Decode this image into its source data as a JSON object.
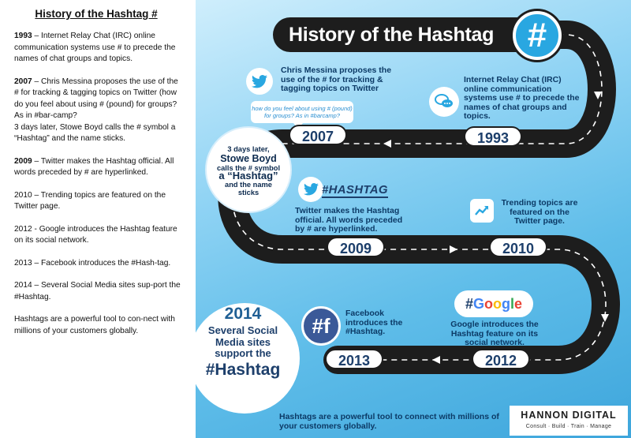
{
  "left_panel": {
    "title": "History of the Hashtag #",
    "paragraphs": [
      {
        "year": "1993",
        "text": " – Internet Relay Chat (IRC) online communication systems use # to precede the names of chat groups and topics."
      },
      {
        "year": "2007",
        "text": " – Chris Messina proposes the use of the # for tracking & tagging topics on Twitter (how do you feel about using # (pound) for groups? As in #bar-camp?\n3 days later, Stowe Boyd calls the # symbol a “Hashtag” and the name sticks."
      },
      {
        "year": "2009",
        "text": " – Twitter makes the Hashtag official. All words preceded by # are hyperlinked."
      },
      {
        "year": "",
        "text": "2010 – Trending topics are featured on the Twitter page."
      },
      {
        "year": "",
        "text": "2012 - Google introduces the Hashtag feature on its social network."
      },
      {
        "year": "",
        "text": "2013 – Facebook introduces the #Hash-tag."
      },
      {
        "year": "",
        "text": "2014 – Several Social Media sites sup-port the #Hashtag."
      },
      {
        "year": "",
        "text": "Hashtags are a powerful tool to con-nect with millions of your customers globally."
      }
    ]
  },
  "infographic": {
    "title": "History of the Hashtag",
    "hash_symbol": "#",
    "events": {
      "e2007": {
        "text": "Chris Messina proposes the use of the # for tracking & tagging topics on Twitter",
        "bubble": "how do you feel about using # (pound) for groups? As in #barcamp?",
        "year": "2007"
      },
      "e1993": {
        "text": "Internet Relay Chat (IRC) online communication systems use # to precede the names of chat groups and topics.",
        "year": "1993"
      },
      "stowe": {
        "line1": "3 days later,",
        "line2": "Stowe Boyd",
        "line3": "calls the # symbol",
        "line4": "a “Hashtag”",
        "line5": "and the name",
        "line6": "sticks"
      },
      "e2009": {
        "text": "Twitter makes the Hashtag official. All words preceded by # are hyperlinked.",
        "tag": "#HASHTAG",
        "year": "2009"
      },
      "e2010": {
        "text": "Trending topics are featured on the Twitter page.",
        "year": "2010"
      },
      "e2012": {
        "text": "Google introduces the Hashtag feature on its social network.",
        "year": "2012",
        "logo": "#Google"
      },
      "e2013": {
        "text": "Facebook introduces the #Hashtag.",
        "year": "2013",
        "icon": "#f"
      },
      "e2014": {
        "year": "2014",
        "text": "Several Social Media sites support the",
        "tag": "#Hashtag"
      }
    },
    "footer": "Hashtags are a powerful tool to connect with millions of your customers globally.",
    "brand": {
      "name": "HANNON DIGITAL",
      "tagline": "Consult · Build · Train · Manage"
    },
    "colors": {
      "road": "#1d1d1d",
      "accent": "#29a7e1",
      "text": "#0c3a66",
      "facebook": "#3b5998"
    }
  }
}
